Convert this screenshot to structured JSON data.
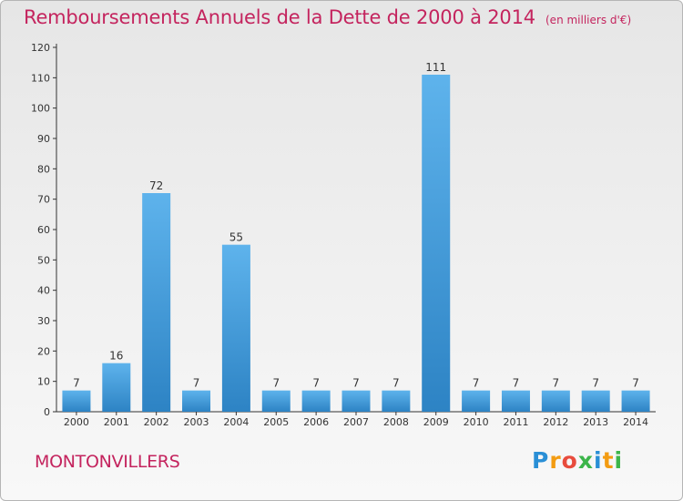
{
  "header": {
    "title": "Remboursements Annuels de la Dette de 2000 à 2014",
    "unit": "(en milliers d'€)"
  },
  "footer": {
    "commune": "MONTONVILLERS",
    "brand": [
      "P",
      "r",
      "o",
      "x",
      "i",
      "t",
      "i"
    ],
    "brand_colors": [
      "#2a8fd6",
      "#f39c12",
      "#e84c3d",
      "#3cb54a",
      "#2a8fd6",
      "#f39c12",
      "#3cb54a"
    ]
  },
  "colors": {
    "title": "#c4245e",
    "bar_top": "#5eb3ec",
    "bar_bottom": "#2d83c4",
    "axis": "#333333",
    "grid": "#d0d0d0"
  },
  "chart_data": {
    "type": "bar",
    "title": "Remboursements Annuels de la Dette de 2000 à 2014",
    "subtitle": "(en milliers d'€)",
    "xlabel": "",
    "ylabel": "",
    "categories": [
      "2000",
      "2001",
      "2002",
      "2003",
      "2004",
      "2005",
      "2006",
      "2007",
      "2008",
      "2009",
      "2010",
      "2011",
      "2012",
      "2013",
      "2014"
    ],
    "values": [
      7,
      16,
      72,
      7,
      55,
      7,
      7,
      7,
      7,
      111,
      7,
      7,
      7,
      7,
      7
    ],
    "ylim": [
      0,
      120
    ],
    "yticks": [
      0,
      10,
      20,
      30,
      40,
      50,
      60,
      70,
      80,
      90,
      100,
      110,
      120
    ],
    "grid": false,
    "legend": "none"
  }
}
